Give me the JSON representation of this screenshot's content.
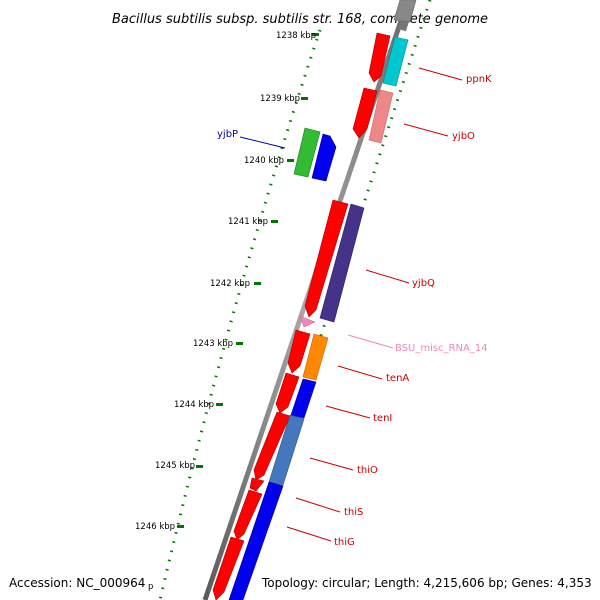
{
  "title": "Bacillus subtilis subsp. subtilis str. 168, complete genome",
  "footer": {
    "accession": "Accession: NC_000964",
    "accession_suffix": "p",
    "summary": "Topology: circular; Length: 4,215,606 bp; Genes: 4,353"
  },
  "ticks": [
    "1238 kbp",
    "1239 kbp",
    "1240 kbp",
    "1241 kbp",
    "1242 kbp",
    "1243 kbp",
    "1244 kbp",
    "1245 kbp",
    "1246 kbp"
  ],
  "genes": [
    {
      "name": "ppnK",
      "color": "#cc0000"
    },
    {
      "name": "yjbO",
      "color": "#cc0000"
    },
    {
      "name": "yjbP",
      "color": "#0000aa"
    },
    {
      "name": "yjbQ",
      "color": "#cc0000"
    },
    {
      "name": "BSU_misc_RNA_14",
      "color": "#ee88bb"
    },
    {
      "name": "tenA",
      "color": "#cc0000"
    },
    {
      "name": "tenI",
      "color": "#cc0000"
    },
    {
      "name": "thiO",
      "color": "#cc0000"
    },
    {
      "name": "thiS",
      "color": "#cc0000"
    },
    {
      "name": "thiG",
      "color": "#cc0000"
    }
  ],
  "colors": {
    "cds_forward": "#ff0000",
    "cds_reverse_blue": "#0000ee",
    "green": "#33bb33",
    "cyan": "#00bbcc",
    "pink": "#ee8888",
    "purple": "#443388",
    "orange": "#ff8800",
    "steelblue": "#4477bb",
    "rna": "#ee88bb",
    "backbone": "#777777",
    "tick": "#007700"
  }
}
